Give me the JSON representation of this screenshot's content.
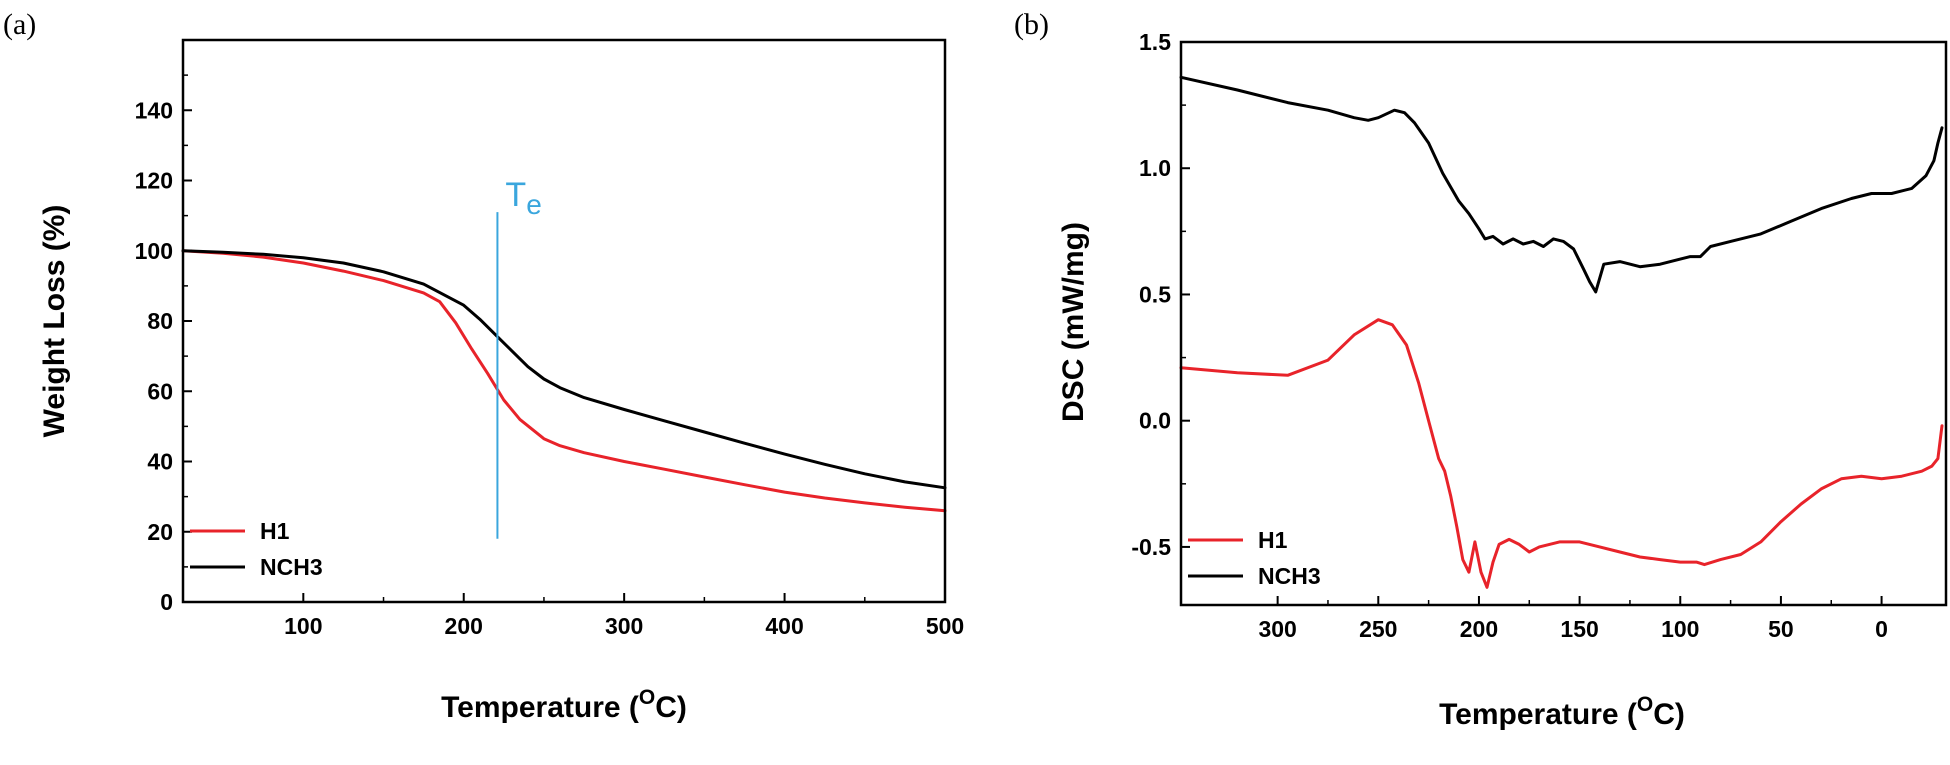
{
  "colors": {
    "h1": "#e8232a",
    "nch3": "#000000",
    "annotation": "#3aa6dd",
    "axis": "#000000"
  },
  "chart_data": [
    {
      "panel_label": "(a)",
      "type": "line",
      "title": "",
      "xlabel": {
        "main": "Temperature (",
        "sup": "O",
        "tail": "C)"
      },
      "ylabel": "Weight Loss (%)",
      "xlim": [
        25,
        500
      ],
      "ylim": [
        0,
        160
      ],
      "x_ticks": [
        100,
        200,
        300,
        400,
        500
      ],
      "x_tick_labels": [
        "100",
        "200",
        "300",
        "400",
        "500"
      ],
      "y_ticks": [
        0,
        20,
        40,
        60,
        80,
        100,
        120,
        140
      ],
      "y_tick_labels": [
        "0",
        "20",
        "40",
        "60",
        "80",
        "100",
        "120",
        "140"
      ],
      "legend_position": "bottom-left",
      "annotation": {
        "label": "T",
        "sub": "e",
        "x": 221,
        "y_from": 18,
        "y_to": 111
      },
      "series": [
        {
          "name": "H1",
          "color": "#e8232a",
          "x": [
            25,
            50,
            75,
            100,
            125,
            150,
            175,
            185,
            195,
            205,
            215,
            225,
            235,
            250,
            260,
            275,
            300,
            325,
            350,
            375,
            400,
            425,
            450,
            475,
            500
          ],
          "y": [
            100,
            99.3,
            98.2,
            96.5,
            94.2,
            91.5,
            88,
            85.5,
            79.5,
            72,
            65,
            57.5,
            52,
            46.5,
            44.5,
            42.5,
            40,
            37.8,
            35.6,
            33.4,
            31.3,
            29.6,
            28.2,
            27,
            26
          ]
        },
        {
          "name": "NCH3",
          "color": "#000000",
          "x": [
            25,
            50,
            75,
            100,
            125,
            150,
            175,
            200,
            210,
            220,
            230,
            240,
            250,
            260,
            275,
            300,
            325,
            350,
            375,
            400,
            425,
            450,
            475,
            500
          ],
          "y": [
            100,
            99.6,
            99,
            98,
            96.5,
            94,
            90.5,
            84.5,
            80.5,
            76,
            71.5,
            67,
            63.5,
            61,
            58.2,
            54.8,
            51.6,
            48.4,
            45.2,
            42.1,
            39.2,
            36.5,
            34.2,
            32.5
          ]
        }
      ]
    },
    {
      "panel_label": "(b)",
      "type": "line",
      "title": "",
      "xlabel": {
        "main": "Temperature (",
        "sup": "O",
        "tail": "C)"
      },
      "ylabel": "DSC (mW/mg)",
      "xlim": [
        348,
        -32
      ],
      "ylim": [
        -0.73,
        1.5
      ],
      "x_ticks": [
        300,
        250,
        200,
        150,
        100,
        50,
        0
      ],
      "x_tick_labels": [
        "300",
        "250",
        "200",
        "150",
        "100",
        "50",
        "0"
      ],
      "y_ticks": [
        1.5,
        1.0,
        0.5,
        0.0,
        -0.5
      ],
      "y_tick_labels": [
        "1.5",
        "1.0",
        "0.5",
        "0.0",
        "-0.5"
      ],
      "legend_position": "bottom-left",
      "series": [
        {
          "name": "H1",
          "color": "#e8232a",
          "x": [
            348,
            320,
            295,
            275,
            262,
            250,
            243,
            236,
            230,
            225,
            220,
            217,
            214,
            211,
            208,
            205,
            202,
            199,
            196,
            193,
            190,
            185,
            180,
            175,
            170,
            165,
            160,
            150,
            140,
            130,
            120,
            110,
            100,
            92,
            88,
            80,
            70,
            60,
            50,
            40,
            30,
            20,
            10,
            0,
            -10,
            -20,
            -25,
            -28,
            -30
          ],
          "y": [
            0.21,
            0.19,
            0.18,
            0.24,
            0.34,
            0.4,
            0.38,
            0.3,
            0.15,
            0.0,
            -0.15,
            -0.2,
            -0.3,
            -0.42,
            -0.55,
            -0.6,
            -0.48,
            -0.6,
            -0.66,
            -0.56,
            -0.49,
            -0.47,
            -0.49,
            -0.52,
            -0.5,
            -0.49,
            -0.48,
            -0.48,
            -0.5,
            -0.52,
            -0.54,
            -0.55,
            -0.56,
            -0.56,
            -0.57,
            -0.55,
            -0.53,
            -0.48,
            -0.4,
            -0.33,
            -0.27,
            -0.23,
            -0.22,
            -0.23,
            -0.22,
            -0.2,
            -0.18,
            -0.15,
            -0.02
          ]
        },
        {
          "name": "NCH3",
          "color": "#000000",
          "x": [
            348,
            320,
            295,
            275,
            262,
            255,
            250,
            242,
            237,
            232,
            225,
            218,
            210,
            205,
            200,
            197,
            193,
            188,
            183,
            178,
            173,
            168,
            163,
            158,
            153,
            148,
            145,
            142,
            138,
            130,
            120,
            110,
            100,
            95,
            90,
            85,
            75,
            60,
            45,
            30,
            15,
            5,
            -5,
            -15,
            -22,
            -26,
            -28,
            -30
          ],
          "y": [
            1.36,
            1.31,
            1.26,
            1.23,
            1.2,
            1.19,
            1.2,
            1.23,
            1.22,
            1.18,
            1.1,
            0.98,
            0.87,
            0.82,
            0.76,
            0.72,
            0.73,
            0.7,
            0.72,
            0.7,
            0.71,
            0.69,
            0.72,
            0.71,
            0.68,
            0.6,
            0.55,
            0.51,
            0.62,
            0.63,
            0.61,
            0.62,
            0.64,
            0.65,
            0.65,
            0.69,
            0.71,
            0.74,
            0.79,
            0.84,
            0.88,
            0.9,
            0.9,
            0.92,
            0.97,
            1.03,
            1.1,
            1.16
          ]
        }
      ]
    }
  ]
}
